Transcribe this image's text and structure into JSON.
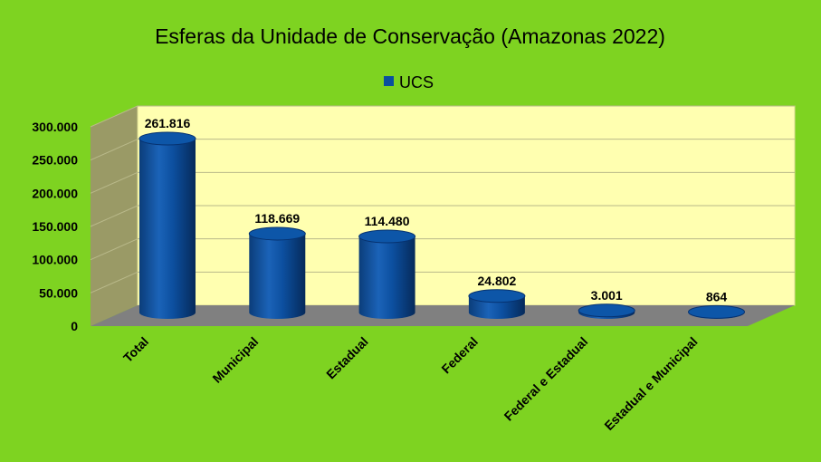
{
  "chart_data": {
    "type": "bar",
    "title": "Esferas da Unidade de Conservação (Amazonas 2022)",
    "categories": [
      "Total",
      "Municipal",
      "Estadual",
      "Federal",
      "Federal e Estadual",
      "Estadual e Municipal"
    ],
    "series": [
      {
        "name": "UCS",
        "values": [
          261816,
          118669,
          114480,
          24802,
          3001,
          864
        ]
      }
    ],
    "data_labels": [
      "261.816",
      "118.669",
      "114.480",
      "24.802",
      "3.001",
      "864"
    ],
    "y_ticks": [
      "0",
      "50.000",
      "100.000",
      "150.000",
      "200.000",
      "250.000",
      "300.000"
    ],
    "ylim": [
      0,
      300000
    ],
    "grid": true,
    "legend_position": "top",
    "bar_shape": "cylinder",
    "colors": {
      "background": "#7ed321",
      "plot_wall": "#ffffb0",
      "side_wall": "#9a9a66",
      "floor": "#808080",
      "bar": "#0a4f9e"
    }
  }
}
